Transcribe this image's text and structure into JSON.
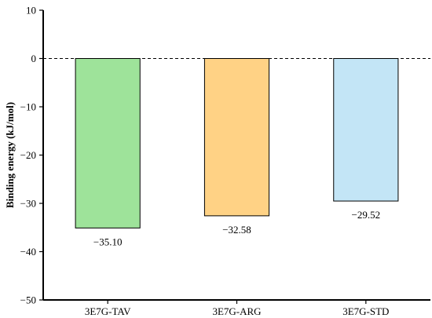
{
  "chart_data": {
    "type": "bar",
    "title": "",
    "xlabel": "",
    "ylabel": "Binding energy (kJ/mol)",
    "ylim": [
      -50,
      10
    ],
    "yticks": [
      10,
      0,
      -10,
      -20,
      -30,
      -40,
      -50
    ],
    "ytick_labels": [
      "10",
      "0",
      "−10",
      "−20",
      "−30",
      "−40",
      "−50"
    ],
    "categories": [
      "3E7G-TAV",
      "3E7G-ARG",
      "3E7G-STD"
    ],
    "values": [
      -35.1,
      -32.58,
      -29.52
    ],
    "value_labels": [
      "−35.10",
      "−32.58",
      "−29.52"
    ],
    "colors": [
      "#9ee39a",
      "#ffd285",
      "#c3e5f6"
    ],
    "reference_line": {
      "y": 0,
      "style": "dashed"
    },
    "grid": false,
    "legend": "none"
  }
}
